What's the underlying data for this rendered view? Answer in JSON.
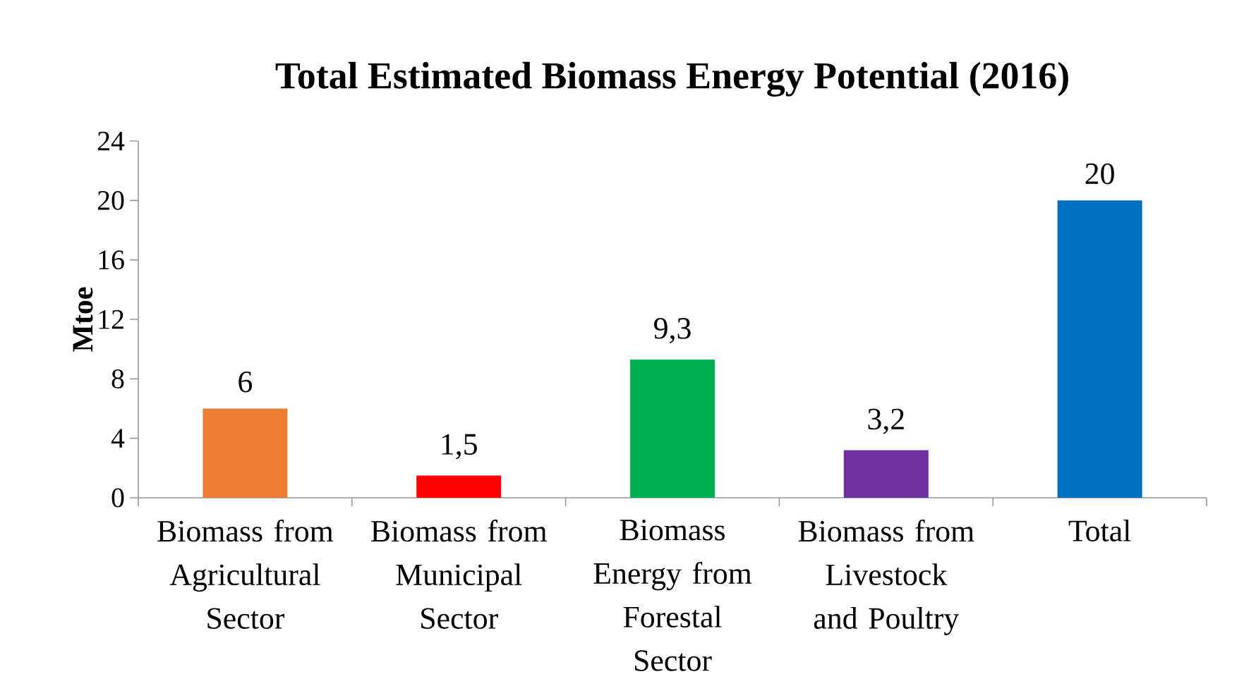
{
  "chart_data": {
    "type": "bar",
    "title": "Total Estimated Biomass Energy Potential (2016)",
    "ylabel": "Mtoe",
    "categories": [
      "Biomass from Agricultural Sector",
      "Biomass from Municipal Sector",
      "Biomass Energy from Forestal Sector",
      "Biomass from Livestock and Poultry",
      "Total"
    ],
    "values": [
      6,
      1.5,
      9.3,
      3.2,
      20
    ],
    "value_labels": [
      "6",
      "1,5",
      "9,3",
      "3,2",
      "20"
    ],
    "colors": [
      "#ed7d31",
      "#ff0000",
      "#00b050",
      "#7030a0",
      "#0070c0"
    ],
    "ylim": [
      0,
      24
    ],
    "yticks": [
      0,
      4,
      8,
      12,
      16,
      20,
      24
    ]
  }
}
